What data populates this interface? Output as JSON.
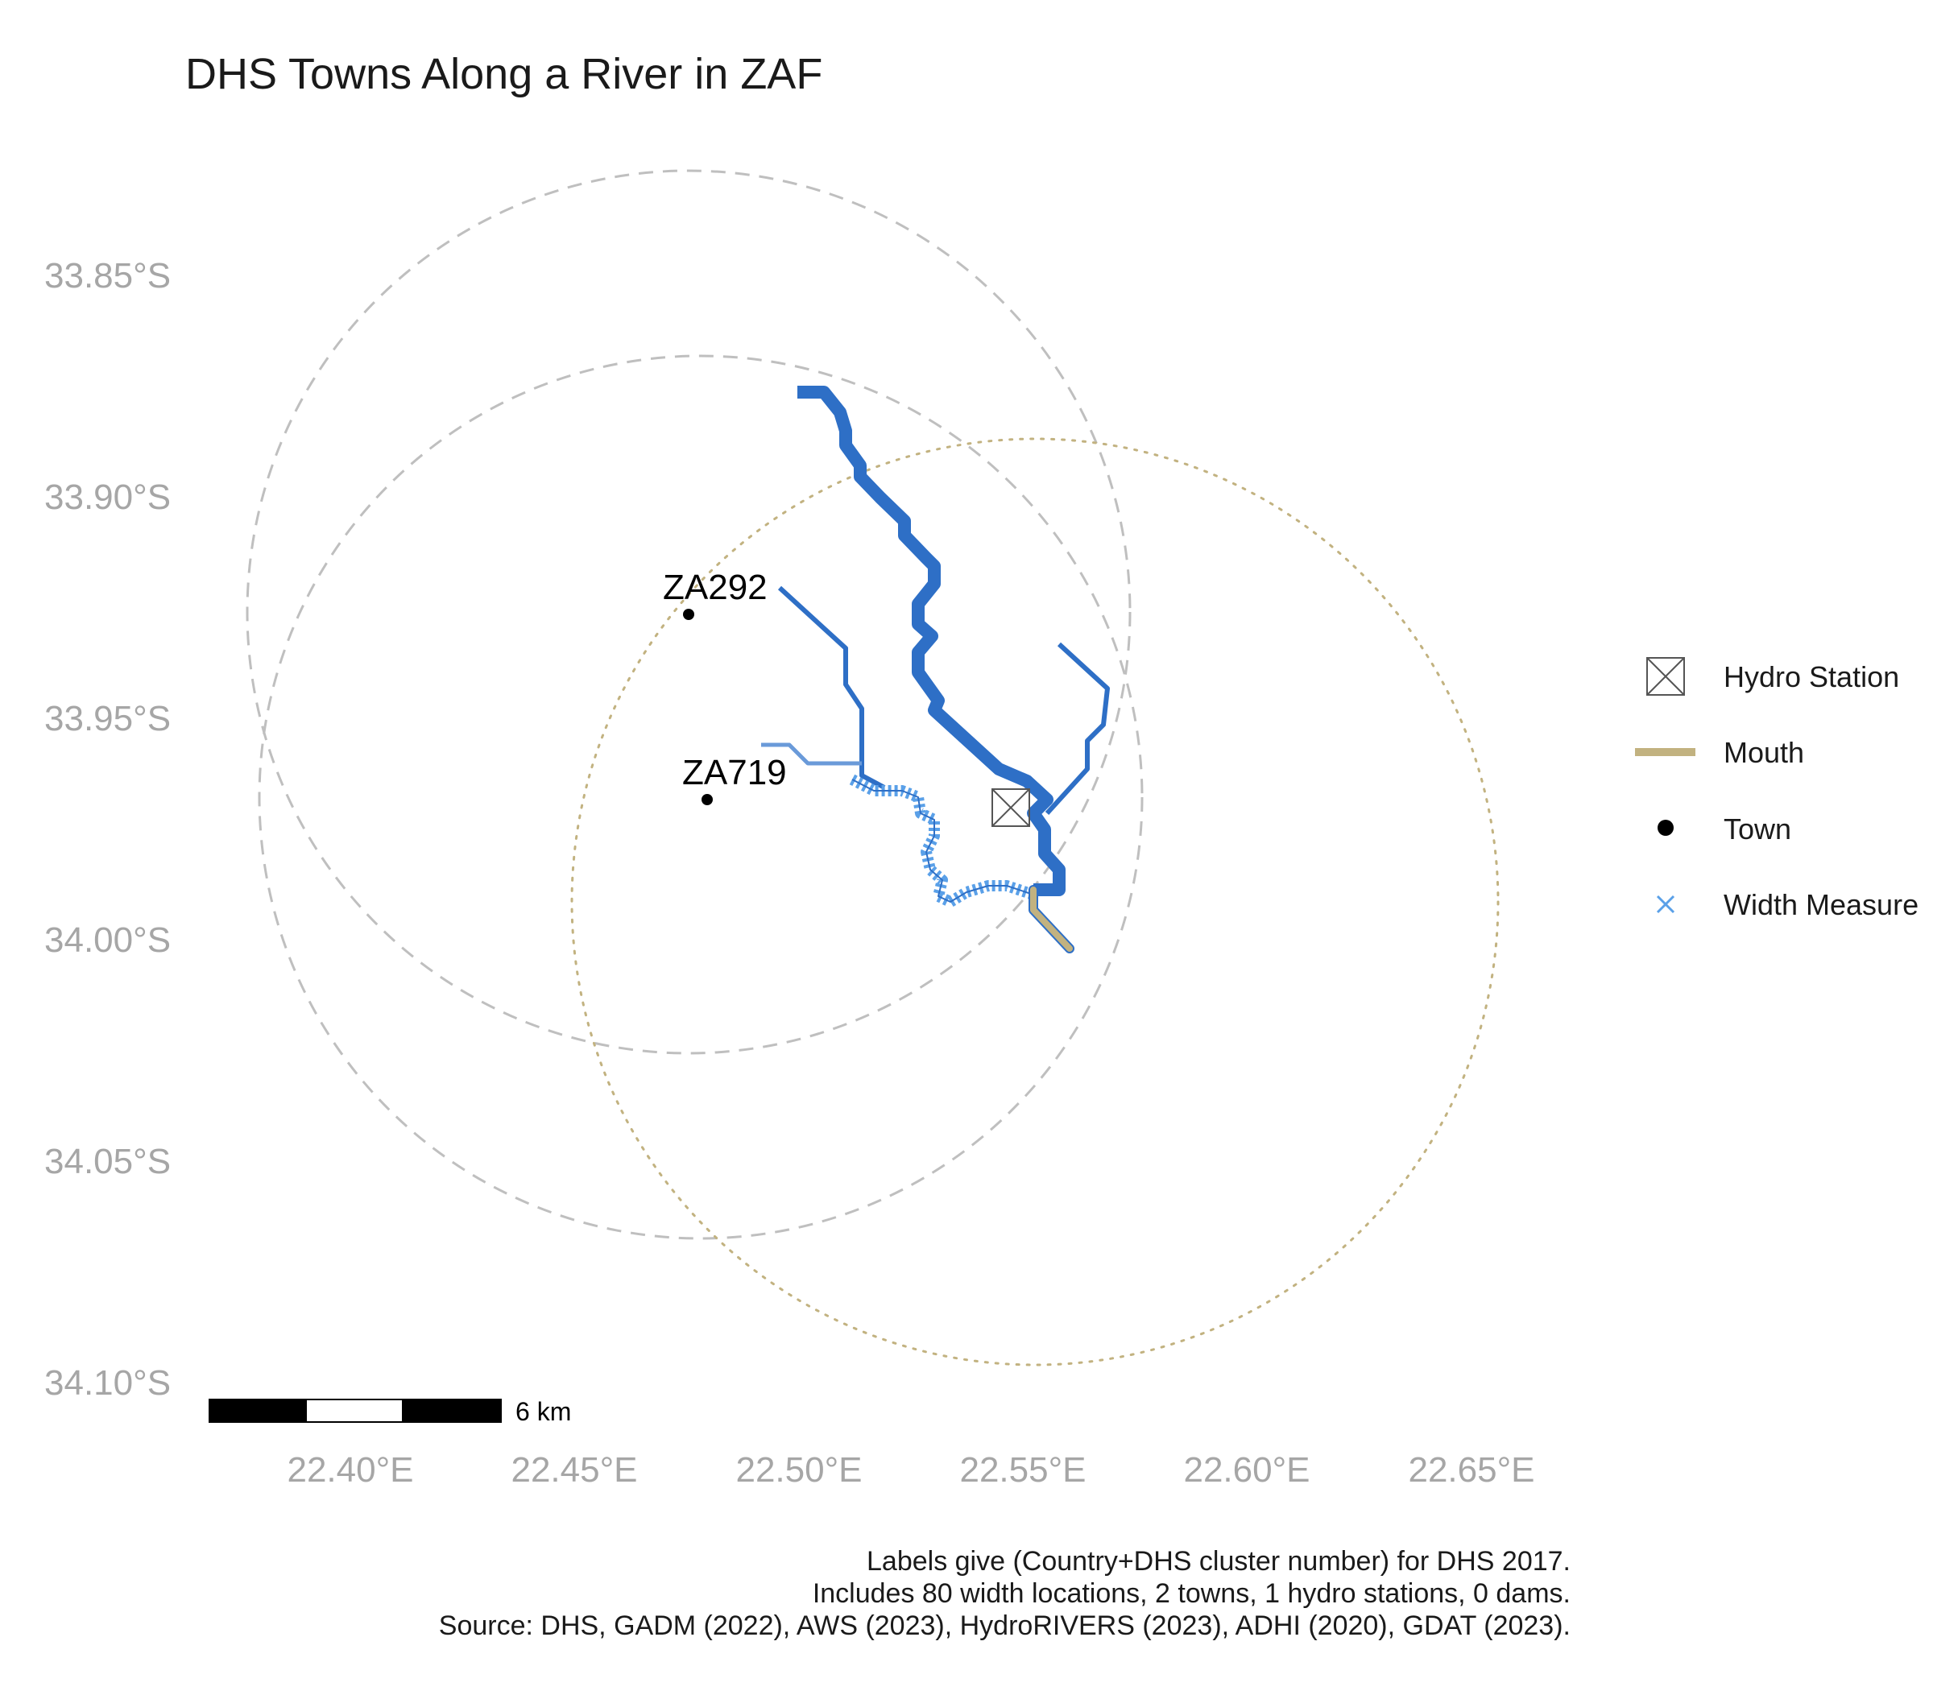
{
  "title": "DHS Towns Along a River in ZAF",
  "axes": {
    "y_ticks": [
      "33.85°S",
      "33.90°S",
      "33.95°S",
      "34.00°S",
      "34.05°S",
      "34.10°S"
    ],
    "x_ticks": [
      "22.40°E",
      "22.45°E",
      "22.50°E",
      "22.55°E",
      "22.60°E",
      "22.65°E"
    ]
  },
  "towns": [
    {
      "label": "ZA292",
      "lon": 22.475,
      "lat": -33.925
    },
    {
      "label": "ZA719",
      "lon": 22.48,
      "lat": -33.967
    }
  ],
  "hydro_station": {
    "lon": 22.548,
    "lat": -33.972
  },
  "legend": {
    "items": [
      {
        "label": "Hydro Station",
        "icon": "hydro-station-icon"
      },
      {
        "label": "Mouth",
        "icon": "mouth-line-icon"
      },
      {
        "label": "Town",
        "icon": "town-dot-icon"
      },
      {
        "label": "Width Measure",
        "icon": "width-measure-x-icon"
      }
    ]
  },
  "scale_bar": {
    "label": "6 km"
  },
  "caption": {
    "line1": "Labels give (Country+DHS cluster number) for DHS 2017.",
    "line2": "Includes 80 width locations, 2 towns, 1 hydro stations, 0 dams.",
    "line3": "Source: DHS, GADM (2022), AWS (2023), HydroRIVERS (2023), ADHI (2020), GDAT (2023)."
  },
  "colors": {
    "river_main": "#2e6fc6",
    "river_light": "#6a9ad9",
    "width_measure": "#5aa0e8",
    "mouth": "#c2b280",
    "buffer_dashed": "#bfbfbf",
    "buffer_dotted": "#c2b280",
    "axis_text": "#a6a6a6"
  }
}
